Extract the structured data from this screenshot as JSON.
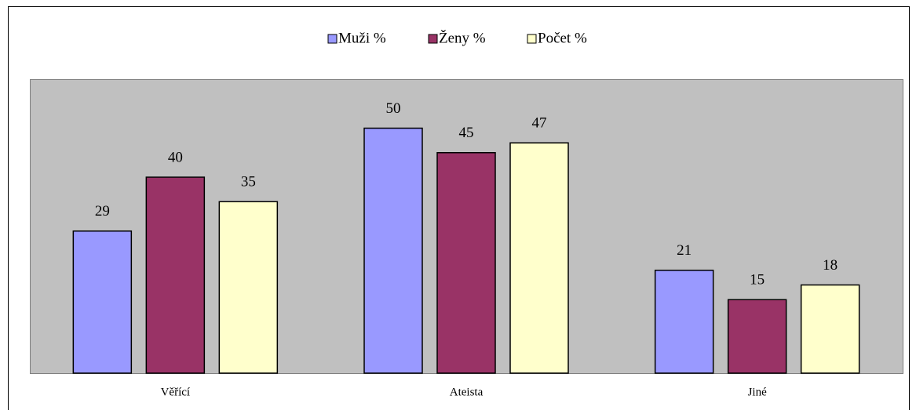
{
  "chart_data": {
    "type": "bar",
    "categories": [
      "Věřící",
      "Ateista",
      "Jiné"
    ],
    "series": [
      {
        "name": "Muži %",
        "color": "#9999ff",
        "values": [
          29,
          50,
          21
        ]
      },
      {
        "name": "Ženy %",
        "color": "#993366",
        "values": [
          40,
          45,
          15
        ]
      },
      {
        "name": "Počet %",
        "color": "#ffffcc",
        "values": [
          35,
          47,
          18
        ]
      }
    ],
    "ylim": [
      0,
      60
    ],
    "legend": "top",
    "plot_background": "#c0c0c0"
  }
}
